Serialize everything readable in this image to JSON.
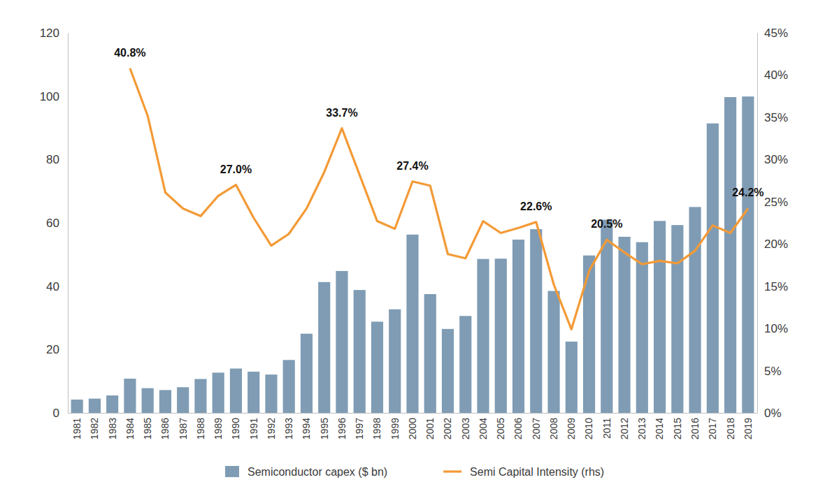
{
  "chart_data": {
    "type": "bar",
    "categories": [
      "1981",
      "1982",
      "1983",
      "1984",
      "1985",
      "1986",
      "1987",
      "1988",
      "1989",
      "1990",
      "1991",
      "1992",
      "1993",
      "1994",
      "1995",
      "1996",
      "1997",
      "1998",
      "1999",
      "2000",
      "2001",
      "2002",
      "2003",
      "2004",
      "2005",
      "2006",
      "2007",
      "2008",
      "2009",
      "2010",
      "2011",
      "2012",
      "2013",
      "2014",
      "2015",
      "2016",
      "2017",
      "2018",
      "2019"
    ],
    "series": [
      {
        "name": "Semiconductor capex ($ bn)",
        "type": "bar",
        "color": "#7f9cb4",
        "values": [
          4.2,
          4.5,
          5.5,
          10.8,
          7.8,
          7.2,
          8.1,
          10.7,
          12.7,
          14.0,
          13.0,
          12.1,
          16.7,
          25.0,
          41.3,
          44.8,
          38.8,
          28.8,
          32.7,
          56.3,
          37.5,
          26.5,
          30.6,
          48.6,
          48.7,
          54.7,
          58.0,
          38.5,
          22.5,
          49.7,
          61.0,
          55.6,
          53.9,
          60.6,
          59.3,
          65.0,
          91.4,
          99.7,
          99.9
        ]
      },
      {
        "name": "Semi Capital Intensity (rhs)",
        "type": "line",
        "color": "#f39a36",
        "axis": "y2",
        "values": [
          null,
          null,
          null,
          40.8,
          35.2,
          26.1,
          24.2,
          23.3,
          25.7,
          27.0,
          23.1,
          19.8,
          21.2,
          24.2,
          28.5,
          33.7,
          28.2,
          22.7,
          21.8,
          27.4,
          26.9,
          18.8,
          18.3,
          22.7,
          21.3,
          21.9,
          22.6,
          15.2,
          9.9,
          16.8,
          20.5,
          19.0,
          17.6,
          18.0,
          17.7,
          19.2,
          22.2,
          21.3,
          24.2
        ]
      }
    ],
    "ylim": [
      0,
      120
    ],
    "yticks": [
      0,
      20,
      40,
      60,
      80,
      100,
      120
    ],
    "y2lim": [
      0,
      45
    ],
    "y2ticks": [
      {
        "value": 0,
        "label": "0%"
      },
      {
        "value": 5,
        "label": "5%"
      },
      {
        "value": 10,
        "label": "10%"
      },
      {
        "value": 15,
        "label": "15%"
      },
      {
        "value": 20,
        "label": "20%"
      },
      {
        "value": 25,
        "label": "25%"
      },
      {
        "value": 30,
        "label": "30%"
      },
      {
        "value": 35,
        "label": "35%"
      },
      {
        "value": 40,
        "label": "40%"
      },
      {
        "value": 45,
        "label": "45%"
      }
    ],
    "legend": "bottom",
    "annotations": [
      {
        "category": "1984",
        "value": 40.8,
        "label": "40.8%"
      },
      {
        "category": "1990",
        "value": 27.0,
        "label": "27.0%"
      },
      {
        "category": "1996",
        "value": 33.7,
        "label": "33.7%"
      },
      {
        "category": "2000",
        "value": 27.4,
        "label": "27.4%"
      },
      {
        "category": "2007",
        "value": 22.6,
        "label": "22.6%"
      },
      {
        "category": "2011",
        "value": 20.5,
        "label": "20.5%"
      },
      {
        "category": "2019",
        "value": 24.2,
        "label": "24.2%"
      }
    ]
  }
}
